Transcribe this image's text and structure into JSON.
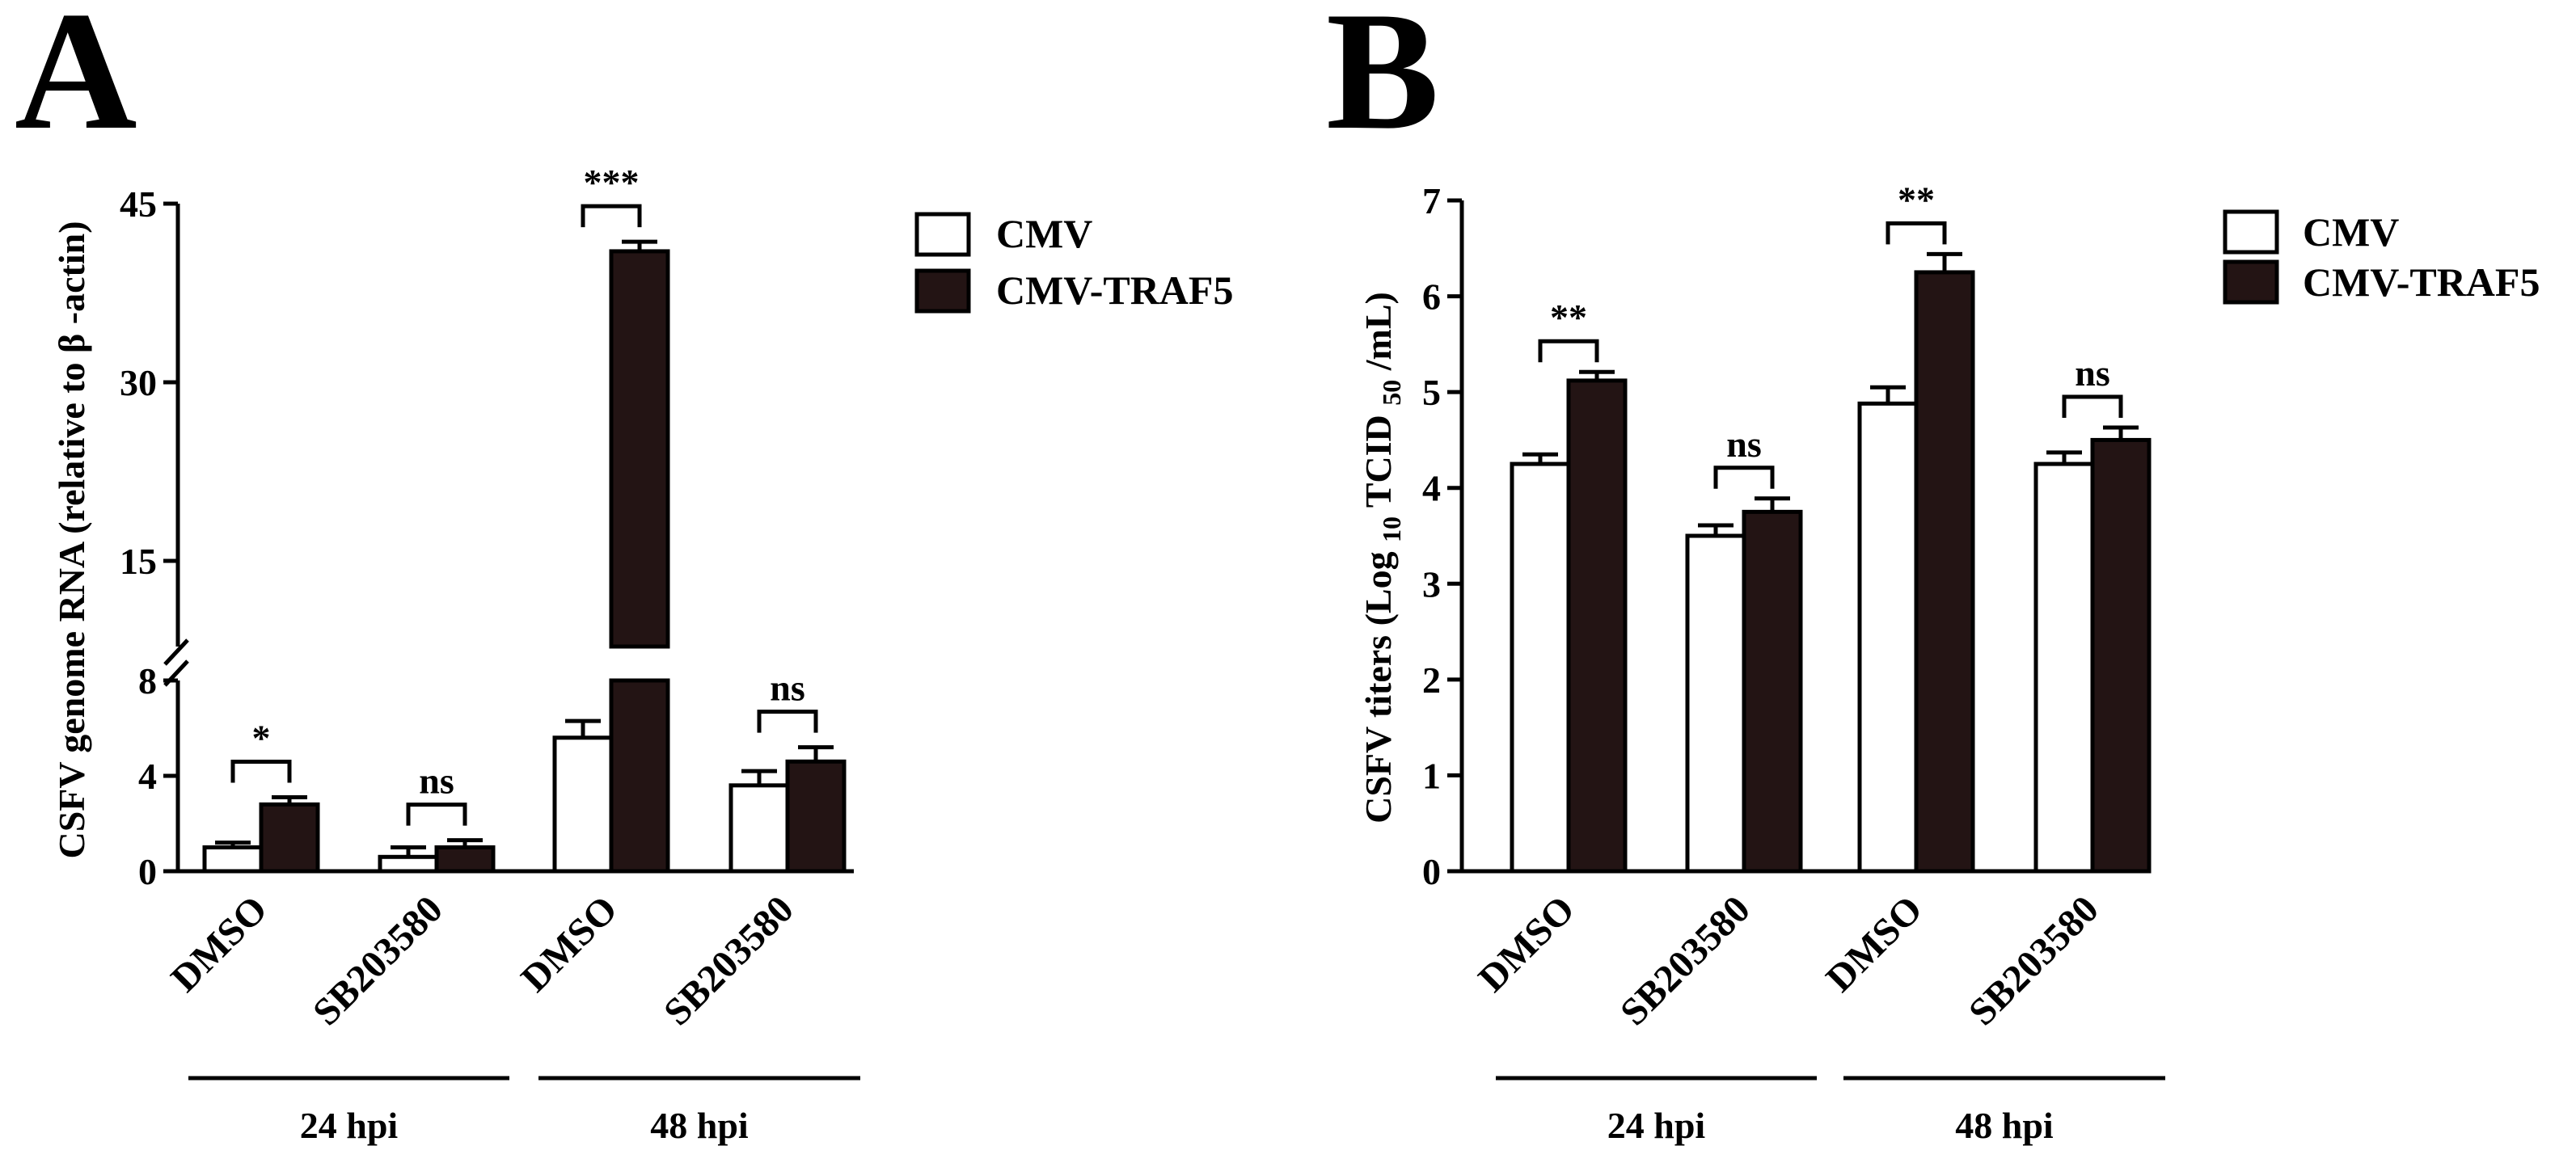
{
  "colors": {
    "cmv": "#ffffff",
    "cmv_traf5": "#231414",
    "stroke": "#000000"
  },
  "chart_data": [
    {
      "type": "bar",
      "panel": "A",
      "ylabel": "CSFV genome RNA (relative to β -actin)",
      "xlabel": "",
      "broken_axis": {
        "lower": [
          0,
          8
        ],
        "upper": [
          8,
          45
        ]
      },
      "ylim": [
        0,
        45
      ],
      "yticks": [
        "0",
        "4",
        "8",
        "15",
        "30",
        "45"
      ],
      "categories": [
        "DMSO",
        "SB203580",
        "DMSO",
        "SB203580"
      ],
      "groups": [
        {
          "label": "24 hpi",
          "categories": [
            0,
            1
          ]
        },
        {
          "label": "48 hpi",
          "categories": [
            2,
            3
          ]
        }
      ],
      "series": [
        {
          "name": "CMV",
          "values": [
            1.0,
            0.6,
            5.6,
            3.6
          ],
          "errors": [
            0.2,
            0.4,
            0.7,
            0.6
          ]
        },
        {
          "name": "CMV-TRAF5",
          "values": [
            2.8,
            1.0,
            41.0,
            4.6
          ],
          "errors": [
            0.3,
            0.3,
            0.8,
            0.6
          ]
        }
      ],
      "significance": [
        "*",
        "ns",
        "***",
        "ns"
      ],
      "legend": [
        "CMV",
        "CMV-TRAF5"
      ]
    },
    {
      "type": "bar",
      "panel": "B",
      "ylabel_parts": [
        "CSFV titers (Log ",
        "10",
        " TCID ",
        "50",
        " /mL)"
      ],
      "xlabel": "",
      "ylim": [
        0,
        7
      ],
      "yticks": [
        "0",
        "1",
        "2",
        "3",
        "4",
        "5",
        "6",
        "7"
      ],
      "categories": [
        "DMSO",
        "SB203580",
        "DMSO",
        "SB203580"
      ],
      "groups": [
        {
          "label": "24 hpi",
          "categories": [
            0,
            1
          ]
        },
        {
          "label": "48 hpi",
          "categories": [
            2,
            3
          ]
        }
      ],
      "series": [
        {
          "name": "CMV",
          "values": [
            4.25,
            3.5,
            4.88,
            4.25
          ],
          "errors": [
            0.1,
            0.11,
            0.17,
            0.12
          ]
        },
        {
          "name": "CMV-TRAF5",
          "values": [
            5.12,
            3.75,
            6.25,
            4.5
          ],
          "errors": [
            0.09,
            0.14,
            0.19,
            0.13
          ]
        }
      ],
      "significance": [
        "**",
        "ns",
        "**",
        "ns"
      ],
      "legend": [
        "CMV",
        "CMV-TRAF5"
      ]
    }
  ]
}
